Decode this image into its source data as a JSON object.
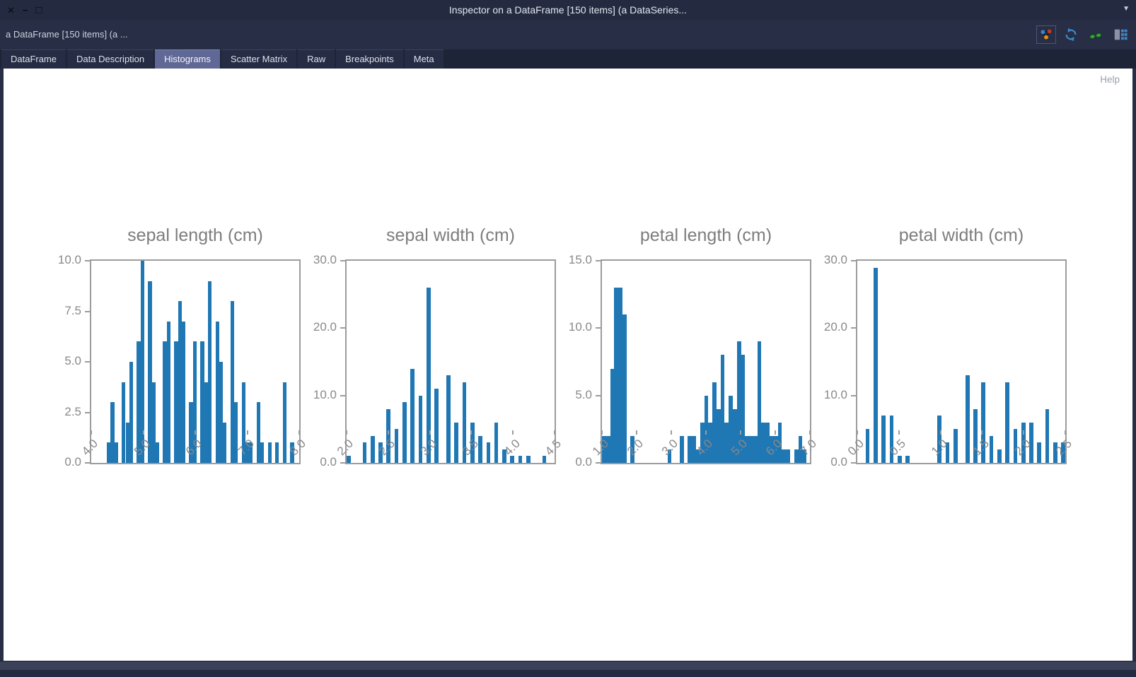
{
  "window": {
    "title": "Inspector on a DataFrame [150 items] (a DataSeries...",
    "controls": {
      "close": "✕",
      "minimize": "−",
      "maximize": "□"
    },
    "dropdown_arrow": "▼"
  },
  "toolbar": {
    "breadcrumb": "a DataFrame [150 items] (a ...",
    "icons": [
      {
        "name": "network-icon",
        "selected": true
      },
      {
        "name": "refresh-icon",
        "selected": false
      },
      {
        "name": "glasses-icon",
        "selected": false
      },
      {
        "name": "table-icon",
        "selected": false
      }
    ]
  },
  "tabs": [
    {
      "label": "DataFrame",
      "active": false
    },
    {
      "label": "Data Description",
      "active": false
    },
    {
      "label": "Histograms",
      "active": true
    },
    {
      "label": "Scatter Matrix",
      "active": false
    },
    {
      "label": "Raw",
      "active": false
    },
    {
      "label": "Breakpoints",
      "active": false
    },
    {
      "label": "Meta",
      "active": false
    }
  ],
  "content": {
    "help_label": "Help"
  },
  "colors": {
    "bar": "#1f77b4",
    "axis": "#9c9c9c",
    "active_tab": "#606896",
    "chrome": "#272e45",
    "content_bg": "#ffffff",
    "icon_blue": "#3d85c6",
    "icon_green": "#35a33c",
    "icon_red": "#c0392b",
    "icon_orange": "#e8920c"
  },
  "chart_data": [
    {
      "type": "bar",
      "title": "sepal length (cm)",
      "xlabel": "",
      "ylabel": "",
      "xlim": [
        4.0,
        8.0
      ],
      "ylim": [
        0,
        10
      ],
      "grid": false,
      "legend": "none",
      "bin_width": 0.072,
      "xtick_values": [
        4.0,
        5.0,
        6.0,
        7.0,
        8.0
      ],
      "xtick_labels": [
        "4.0",
        "5.0",
        "6.0",
        "7.0",
        "8.0"
      ],
      "ytick_values": [
        0,
        2.5,
        5,
        7.5,
        10
      ],
      "ytick_labels": [
        "0.0",
        "2.5",
        "5.0",
        "7.5",
        "10.0"
      ],
      "bars": [
        [
          4.3,
          1
        ],
        [
          4.372,
          3
        ],
        [
          4.444,
          1
        ],
        [
          4.588,
          4
        ],
        [
          4.66,
          2
        ],
        [
          4.732,
          5
        ],
        [
          4.876,
          6
        ],
        [
          4.948,
          10
        ],
        [
          5.092,
          9
        ],
        [
          5.164,
          4
        ],
        [
          5.236,
          1
        ],
        [
          5.38,
          6
        ],
        [
          5.452,
          7
        ],
        [
          5.596,
          6
        ],
        [
          5.668,
          8
        ],
        [
          5.74,
          7
        ],
        [
          5.884,
          3
        ],
        [
          5.956,
          6
        ],
        [
          6.1,
          6
        ],
        [
          6.172,
          4
        ],
        [
          6.244,
          9
        ],
        [
          6.388,
          7
        ],
        [
          6.46,
          5
        ],
        [
          6.532,
          2
        ],
        [
          6.676,
          8
        ],
        [
          6.748,
          3
        ],
        [
          6.892,
          4
        ],
        [
          6.964,
          1
        ],
        [
          7.036,
          1
        ],
        [
          7.18,
          3
        ],
        [
          7.252,
          1
        ],
        [
          7.396,
          1
        ],
        [
          7.54,
          1
        ],
        [
          7.684,
          4
        ],
        [
          7.828,
          1
        ]
      ]
    },
    {
      "type": "bar",
      "title": "sepal width (cm)",
      "xlabel": "",
      "ylabel": "",
      "xlim": [
        2.0,
        4.5
      ],
      "ylim": [
        0,
        30
      ],
      "grid": false,
      "legend": "none",
      "bin_width": 0.048,
      "xtick_values": [
        2.0,
        2.5,
        3.0,
        3.5,
        4.0,
        4.5
      ],
      "xtick_labels": [
        "2.0",
        "2.5",
        "3.0",
        "3.5",
        "4.0",
        "4.5"
      ],
      "ytick_values": [
        0,
        10,
        20,
        30
      ],
      "ytick_labels": [
        "0.0",
        "10.0",
        "20.0",
        "30.0"
      ],
      "bars": [
        [
          2.0,
          1
        ],
        [
          2.192,
          3
        ],
        [
          2.288,
          4
        ],
        [
          2.384,
          3
        ],
        [
          2.48,
          8
        ],
        [
          2.576,
          5
        ],
        [
          2.672,
          9
        ],
        [
          2.768,
          14
        ],
        [
          2.864,
          10
        ],
        [
          2.96,
          26
        ],
        [
          3.056,
          11
        ],
        [
          3.2,
          13
        ],
        [
          3.296,
          6
        ],
        [
          3.392,
          12
        ],
        [
          3.488,
          6
        ],
        [
          3.584,
          4
        ],
        [
          3.68,
          3
        ],
        [
          3.776,
          6
        ],
        [
          3.872,
          2
        ],
        [
          3.968,
          1
        ],
        [
          4.064,
          1
        ],
        [
          4.16,
          1
        ],
        [
          4.352,
          1
        ]
      ]
    },
    {
      "type": "bar",
      "title": "petal length (cm)",
      "xlabel": "",
      "ylabel": "",
      "xlim": [
        1.0,
        7.0
      ],
      "ylim": [
        0,
        15
      ],
      "grid": false,
      "legend": "none",
      "bin_width": 0.118,
      "xtick_values": [
        1.0,
        2.0,
        3.0,
        4.0,
        5.0,
        6.0,
        7.0
      ],
      "xtick_labels": [
        "1.0",
        "2.0",
        "3.0",
        "4.0",
        "5.0",
        "6.0",
        "7.0"
      ],
      "ytick_values": [
        0,
        5,
        10,
        15
      ],
      "ytick_labels": [
        "0.0",
        "5.0",
        "10.0",
        "15.0"
      ],
      "bars": [
        [
          1.0,
          2
        ],
        [
          1.118,
          2
        ],
        [
          1.236,
          7
        ],
        [
          1.354,
          13
        ],
        [
          1.472,
          13
        ],
        [
          1.59,
          11
        ],
        [
          1.826,
          2
        ],
        [
          2.888,
          1
        ],
        [
          3.242,
          2
        ],
        [
          3.478,
          2
        ],
        [
          3.596,
          2
        ],
        [
          3.714,
          1
        ],
        [
          3.832,
          3
        ],
        [
          3.95,
          5
        ],
        [
          4.068,
          3
        ],
        [
          4.186,
          6
        ],
        [
          4.304,
          4
        ],
        [
          4.422,
          8
        ],
        [
          4.54,
          3
        ],
        [
          4.658,
          5
        ],
        [
          4.776,
          4
        ],
        [
          4.894,
          9
        ],
        [
          5.012,
          8
        ],
        [
          5.13,
          2
        ],
        [
          5.248,
          2
        ],
        [
          5.366,
          2
        ],
        [
          5.484,
          9
        ],
        [
          5.602,
          3
        ],
        [
          5.72,
          3
        ],
        [
          5.838,
          2
        ],
        [
          5.956,
          2
        ],
        [
          6.074,
          3
        ],
        [
          6.192,
          1
        ],
        [
          6.31,
          1
        ],
        [
          6.546,
          1
        ],
        [
          6.664,
          2
        ],
        [
          6.782,
          1
        ]
      ]
    },
    {
      "type": "bar",
      "title": "petal width (cm)",
      "xlabel": "",
      "ylabel": "",
      "xlim": [
        0.0,
        2.5
      ],
      "ylim": [
        0,
        30
      ],
      "grid": false,
      "legend": "none",
      "bin_width": 0.048,
      "xtick_values": [
        0.0,
        0.5,
        1.0,
        1.5,
        2.0,
        2.5
      ],
      "xtick_labels": [
        "0.0",
        "0.5",
        "1.0",
        "1.5",
        "2.0",
        "2.5"
      ],
      "ytick_values": [
        0,
        10,
        20,
        30
      ],
      "ytick_labels": [
        "0.0",
        "10.0",
        "20.0",
        "30.0"
      ],
      "bars": [
        [
          0.1,
          5
        ],
        [
          0.196,
          29
        ],
        [
          0.292,
          7
        ],
        [
          0.388,
          7
        ],
        [
          0.484,
          1
        ],
        [
          0.58,
          1
        ],
        [
          0.964,
          7
        ],
        [
          1.06,
          3
        ],
        [
          1.156,
          5
        ],
        [
          1.3,
          13
        ],
        [
          1.396,
          8
        ],
        [
          1.492,
          12
        ],
        [
          1.588,
          4
        ],
        [
          1.684,
          2
        ],
        [
          1.78,
          12
        ],
        [
          1.876,
          5
        ],
        [
          1.972,
          6
        ],
        [
          2.068,
          6
        ],
        [
          2.164,
          3
        ],
        [
          2.26,
          8
        ],
        [
          2.356,
          3
        ],
        [
          2.452,
          3
        ]
      ]
    }
  ]
}
